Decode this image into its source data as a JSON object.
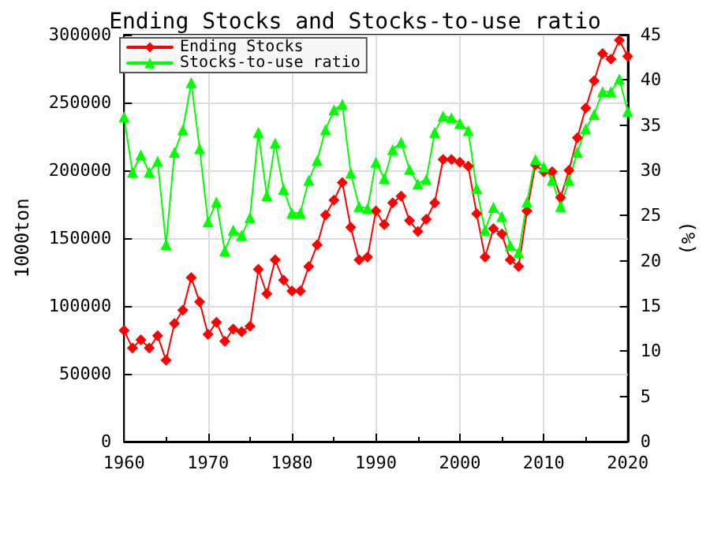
{
  "chart_data": {
    "type": "line",
    "title": "Ending Stocks and Stocks-to-use ratio",
    "ylabel": "1000ton",
    "y2label": "(%)",
    "x": [
      1960,
      1961,
      1962,
      1963,
      1964,
      1965,
      1966,
      1967,
      1968,
      1969,
      1970,
      1971,
      1972,
      1973,
      1974,
      1975,
      1976,
      1977,
      1978,
      1979,
      1980,
      1981,
      1982,
      1983,
      1984,
      1985,
      1986,
      1987,
      1988,
      1989,
      1990,
      1991,
      1992,
      1993,
      1994,
      1995,
      1996,
      1997,
      1998,
      1999,
      2000,
      2001,
      2002,
      2003,
      2004,
      2005,
      2006,
      2007,
      2008,
      2009,
      2010,
      2011,
      2012,
      2013,
      2014,
      2015,
      2016,
      2017,
      2018,
      2019,
      2020
    ],
    "series": [
      {
        "name": "Ending Stocks",
        "color": "#ff0000",
        "marker": "diamond",
        "values": [
          82000,
          69000,
          75000,
          69000,
          78000,
          60000,
          87000,
          97000,
          121000,
          103000,
          79000,
          88000,
          74000,
          83000,
          81000,
          85000,
          127000,
          109000,
          134000,
          119000,
          111000,
          111000,
          129000,
          145000,
          167000,
          178000,
          191000,
          158000,
          134000,
          136000,
          170000,
          160000,
          176000,
          181000,
          163000,
          155000,
          164000,
          176000,
          208000,
          208000,
          206000,
          203000,
          168000,
          136000,
          157000,
          153000,
          134000,
          129000,
          170000,
          204000,
          199000,
          199000,
          180000,
          200000,
          224000,
          246000,
          266000,
          286000,
          282000,
          296000,
          284000
        ]
      },
      {
        "name": "Stocks-to-use ratio",
        "color": "#00ff00",
        "marker": "triangle",
        "axis": "y2",
        "values": [
          35.9,
          29.8,
          31.7,
          29.8,
          31.0,
          21.8,
          32.0,
          34.5,
          39.7,
          32.4,
          24.3,
          26.5,
          21.1,
          23.4,
          22.8,
          24.8,
          34.2,
          27.2,
          33.0,
          27.9,
          25.3,
          25.3,
          28.9,
          31.1,
          34.5,
          36.7,
          37.3,
          29.7,
          26.0,
          25.8,
          30.9,
          29.1,
          32.3,
          33.1,
          30.1,
          28.5,
          29.0,
          34.2,
          36.0,
          35.8,
          35.2,
          34.4,
          28.0,
          23.4,
          25.9,
          24.9,
          21.7,
          20.9,
          26.5,
          31.2,
          30.4,
          28.9,
          26.0,
          28.9,
          32.0,
          34.6,
          36.2,
          38.7,
          38.7,
          40.1,
          36.5
        ]
      }
    ],
    "xlim": [
      1960,
      2020
    ],
    "xticks": [
      1960,
      1970,
      1980,
      1990,
      2000,
      2010,
      2020
    ],
    "ylim": [
      0,
      300000
    ],
    "yticks": [
      0,
      50000,
      100000,
      150000,
      200000,
      250000,
      300000
    ],
    "y2lim": [
      0,
      45
    ],
    "y2ticks": [
      0,
      5,
      10,
      15,
      20,
      25,
      30,
      35,
      40,
      45
    ],
    "grid": true,
    "legend": "top left",
    "line_style": "solid"
  }
}
